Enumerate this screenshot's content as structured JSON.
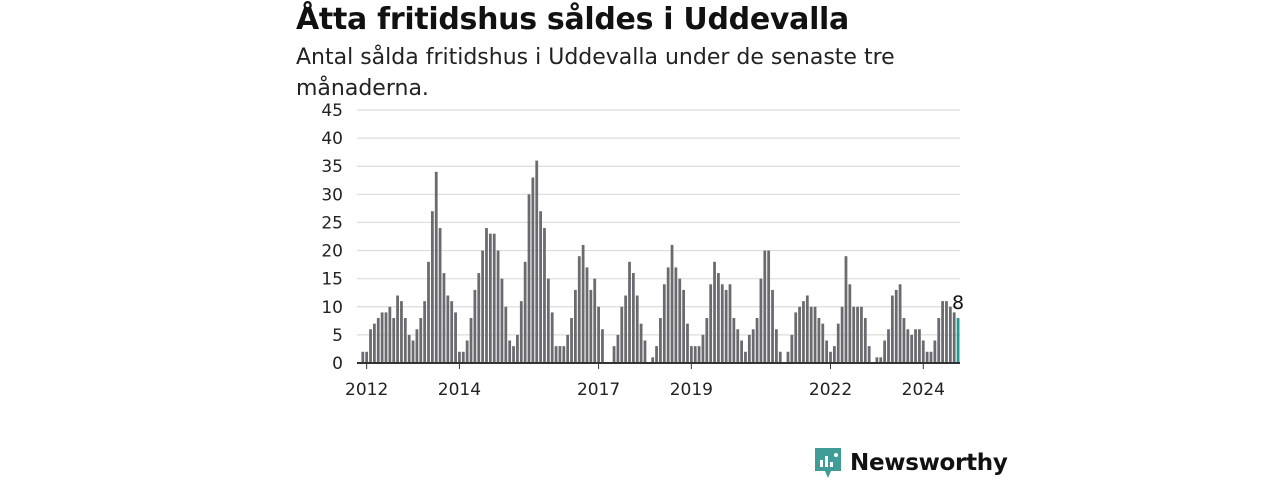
{
  "title": "Åtta fritidshus såldes i Uddevalla",
  "subtitle": "Antal sålda fritidshus i Uddevalla under de senaste tre månaderna.",
  "brand": {
    "name": "Newsworthy",
    "color": "#3f9c97"
  },
  "colors": {
    "bar": "#6b6b6f",
    "highlight": "#1e9a94",
    "grid": "#dcdcdc",
    "axis": "#333333"
  },
  "chart_data": {
    "type": "bar",
    "title": "Åtta fritidshus såldes i Uddevalla",
    "subtitle": "Antal sålda fritidshus i Uddevalla under de senaste tre månaderna.",
    "xlabel": "",
    "ylabel": "",
    "ylim": [
      0,
      45
    ],
    "yticks": [
      0,
      5,
      10,
      15,
      20,
      25,
      30,
      35,
      40,
      45
    ],
    "xticks": [
      {
        "label": "2012",
        "index": 2
      },
      {
        "label": "2014",
        "index": 26
      },
      {
        "label": "2017",
        "index": 62
      },
      {
        "label": "2019",
        "index": 86
      },
      {
        "label": "2022",
        "index": 122
      },
      {
        "label": "2024",
        "index": 146
      }
    ],
    "grid": true,
    "x_start": "2012-01",
    "x_end": "2024-12",
    "interval": "monthly",
    "values": [
      0,
      2,
      2,
      6,
      7,
      8,
      9,
      9,
      10,
      8,
      12,
      11,
      8,
      5,
      4,
      6,
      8,
      11,
      18,
      27,
      34,
      24,
      16,
      12,
      11,
      9,
      2,
      2,
      4,
      8,
      13,
      16,
      20,
      24,
      23,
      23,
      20,
      15,
      10,
      4,
      3,
      5,
      11,
      18,
      30,
      33,
      36,
      27,
      24,
      15,
      9,
      3,
      3,
      3,
      5,
      8,
      13,
      19,
      21,
      17,
      13,
      15,
      10,
      6,
      0,
      0,
      3,
      5,
      10,
      12,
      18,
      16,
      12,
      7,
      4,
      0,
      1,
      3,
      8,
      14,
      17,
      21,
      17,
      15,
      13,
      7,
      3,
      3,
      3,
      5,
      8,
      14,
      18,
      16,
      14,
      13,
      14,
      8,
      6,
      4,
      2,
      5,
      6,
      8,
      15,
      20,
      20,
      13,
      6,
      2,
      0,
      2,
      5,
      9,
      10,
      11,
      12,
      10,
      10,
      8,
      7,
      4,
      2,
      3,
      7,
      10,
      19,
      14,
      10,
      10,
      10,
      8,
      3,
      0,
      1,
      1,
      4,
      6,
      12,
      13,
      14,
      8,
      6,
      5,
      6,
      6,
      4,
      2,
      2,
      4,
      8,
      11,
      11,
      10,
      9,
      8
    ],
    "highlight_index": 155,
    "annotation": "8"
  }
}
